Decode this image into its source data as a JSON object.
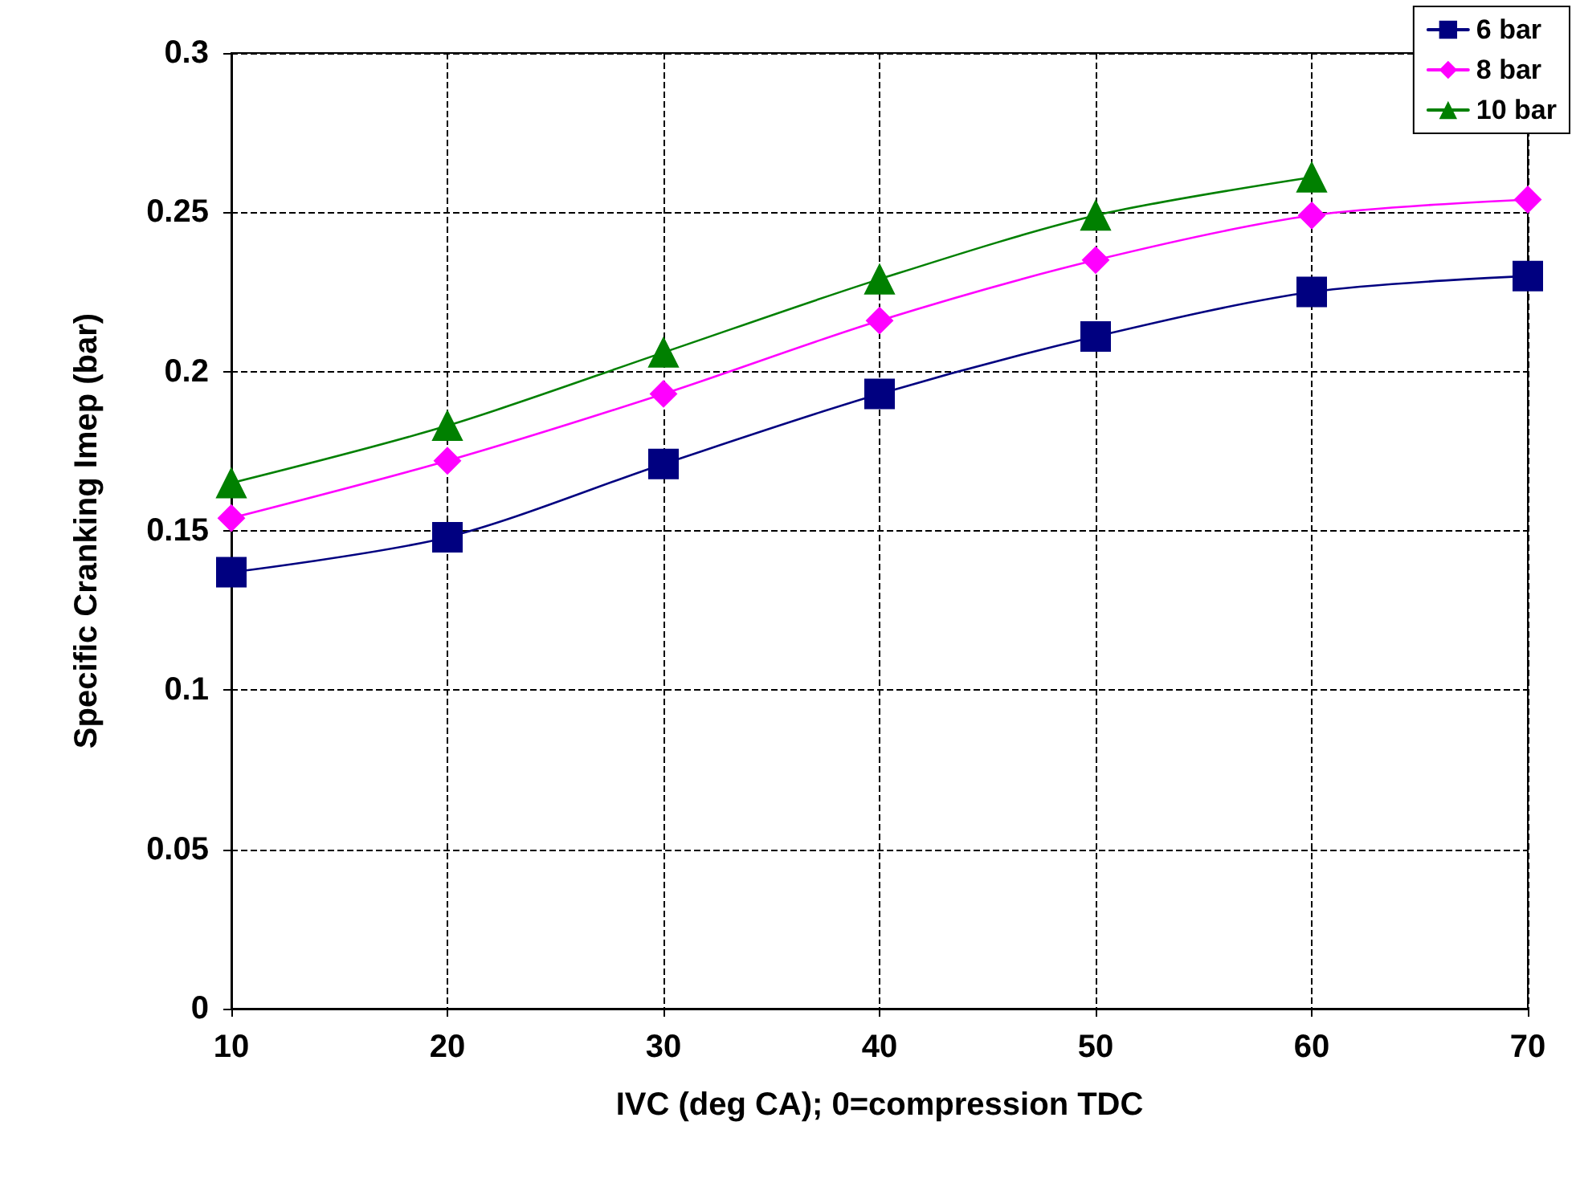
{
  "chart_data": {
    "type": "line",
    "xlabel": "IVC (deg CA); 0=compression TDC",
    "ylabel": "Specific Cranking Imep (bar)",
    "x": [
      10,
      20,
      30,
      40,
      50,
      60,
      70
    ],
    "series": [
      {
        "name": "6 bar",
        "color": "#000080",
        "marker": "square",
        "values": [
          0.137,
          0.148,
          0.171,
          0.193,
          0.211,
          0.225,
          0.23
        ]
      },
      {
        "name": "8 bar",
        "color": "#ff00ff",
        "marker": "diamond",
        "values": [
          0.154,
          0.172,
          0.193,
          0.216,
          0.235,
          0.249,
          0.254
        ]
      },
      {
        "name": "10 bar",
        "color": "#008000",
        "marker": "triangle",
        "values": [
          0.165,
          0.183,
          0.206,
          0.229,
          0.249,
          0.261,
          null
        ]
      }
    ],
    "xlim": [
      10,
      70
    ],
    "xticks": [
      10,
      20,
      30,
      40,
      50,
      60,
      70
    ],
    "ylim": [
      0,
      0.3
    ],
    "yticks": [
      0,
      0.05,
      0.1,
      0.15,
      0.2,
      0.25,
      0.3
    ],
    "grid": true,
    "legend": "top right",
    "line_style": "solid"
  }
}
